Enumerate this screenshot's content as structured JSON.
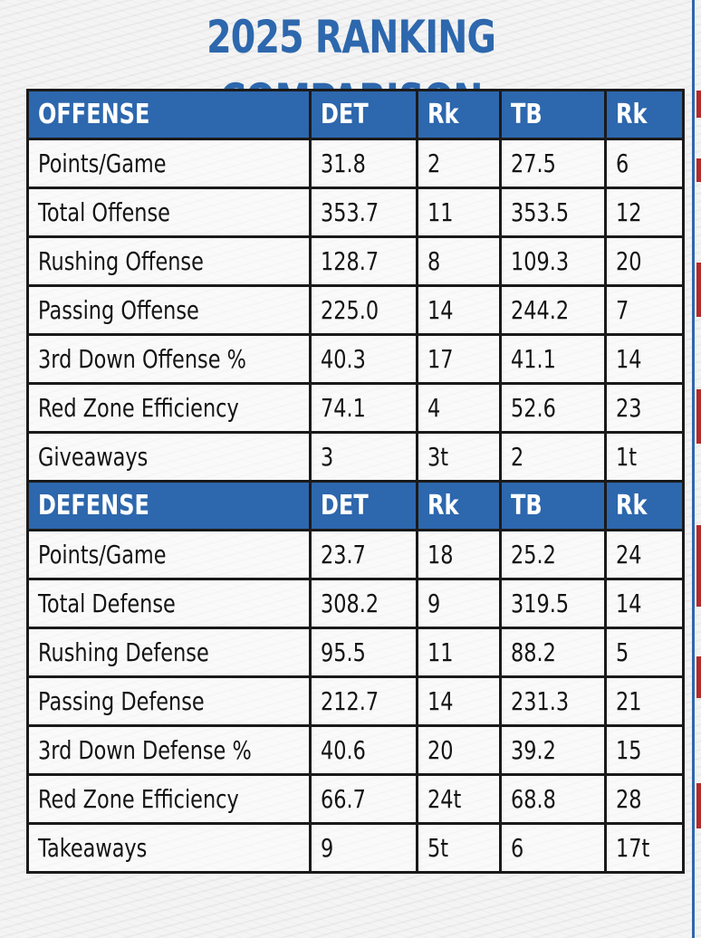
{
  "title": "2025 RANKING COMPARISON",
  "colors": {
    "accent_blue": "#2d67ad",
    "side_red": "#b22a2a",
    "grid": "#1a1a1a"
  },
  "offense": {
    "header": [
      "OFFENSE",
      "DET",
      "Rk",
      "TB",
      "Rk"
    ],
    "rows": [
      [
        "Points/Game",
        "31.8",
        "2",
        "27.5",
        "6"
      ],
      [
        "Total Offense",
        "353.7",
        "11",
        "353.5",
        "12"
      ],
      [
        "Rushing Offense",
        "128.7",
        "8",
        "109.3",
        "20"
      ],
      [
        "Passing Offense",
        "225.0",
        "14",
        "244.2",
        "7"
      ],
      [
        "3rd Down Offense %",
        "40.3",
        "17",
        "41.1",
        "14"
      ],
      [
        "Red Zone Efficiency",
        "74.1",
        "4",
        "52.6",
        "23"
      ],
      [
        "Giveaways",
        "3",
        "3t",
        "2",
        "1t"
      ]
    ]
  },
  "defense": {
    "header": [
      "DEFENSE",
      "DET",
      "Rk",
      "TB",
      "Rk"
    ],
    "rows": [
      [
        "Points/Game",
        "23.7",
        "18",
        "25.2",
        "24"
      ],
      [
        "Total Defense",
        "308.2",
        "9",
        "319.5",
        "14"
      ],
      [
        "Rushing Defense",
        "95.5",
        "11",
        "88.2",
        "5"
      ],
      [
        "Passing Defense",
        "212.7",
        "14",
        "231.3",
        "21"
      ],
      [
        "3rd Down Defense %",
        "40.6",
        "20",
        "39.2",
        "15"
      ],
      [
        "Red Zone Efficiency",
        "66.7",
        "24t",
        "68.8",
        "28"
      ],
      [
        "Takeaways",
        "9",
        "5t",
        "6",
        "17t"
      ]
    ]
  }
}
